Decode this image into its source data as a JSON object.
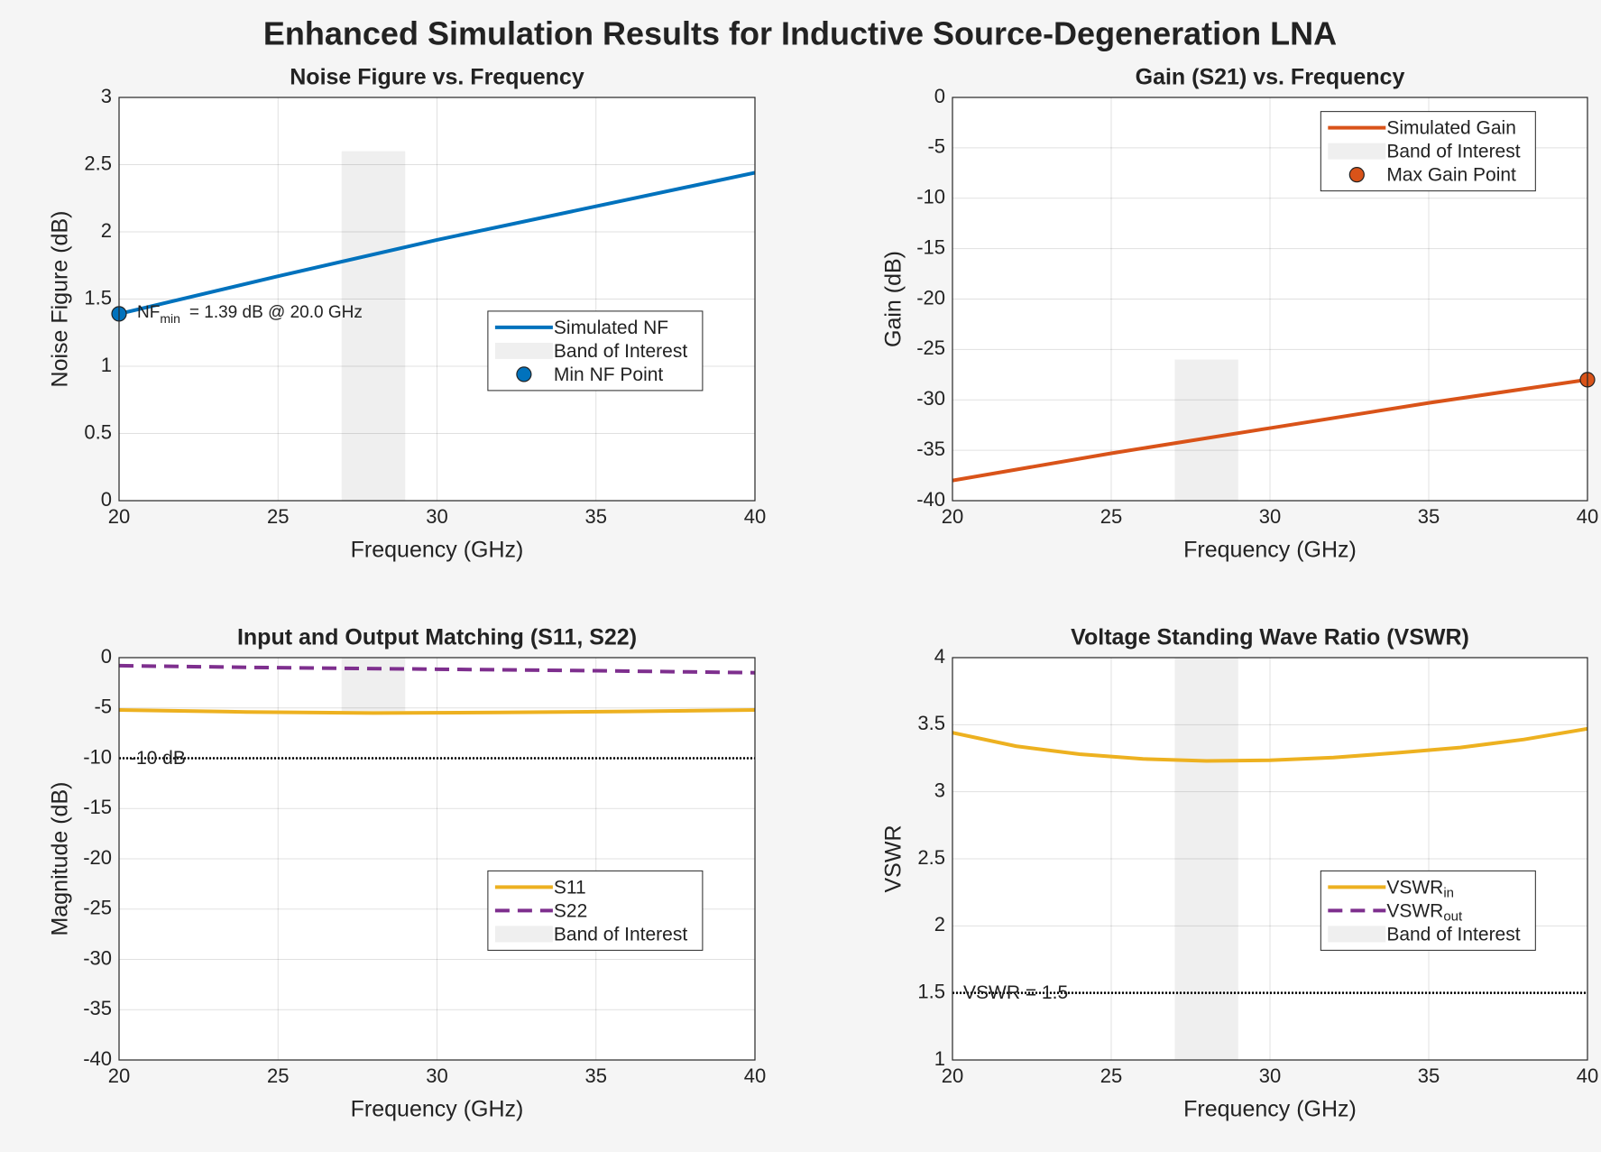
{
  "title": "Enhanced Simulation Results for Inductive Source-Degeneration LNA",
  "chart_data": [
    {
      "type": "line",
      "title": "Noise Figure vs. Frequency",
      "xlabel": "Frequency (GHz)",
      "ylabel": "Noise Figure (dB)",
      "xlim": [
        20,
        40
      ],
      "xticks": [
        20,
        25,
        30,
        35,
        40
      ],
      "ylim": [
        0,
        3
      ],
      "yticks": [
        0,
        0.5,
        1,
        1.5,
        2,
        2.5,
        3
      ],
      "grid": true,
      "legend": "east",
      "series": [
        {
          "name": "Simulated NF",
          "kind": "line",
          "color": "#0072bd",
          "x": [
            20,
            25,
            30,
            35,
            40
          ],
          "values": [
            1.39,
            1.67,
            1.94,
            2.19,
            2.44
          ]
        },
        {
          "name": "Band of Interest",
          "kind": "band",
          "color": "#efefef",
          "x": [
            27,
            29
          ],
          "values": [
            0,
            2.6
          ]
        },
        {
          "name": "Min NF Point",
          "kind": "marker",
          "color": "#0072bd",
          "x": [
            20
          ],
          "values": [
            1.39
          ]
        }
      ],
      "annotation": {
        "text": "NF",
        "sub": "min",
        "rest": "=  1.39  dB  @  20.0  GHz"
      }
    },
    {
      "type": "line",
      "title": "Gain (S21) vs. Frequency",
      "xlabel": "Frequency (GHz)",
      "ylabel": "Gain (dB)",
      "xlim": [
        20,
        40
      ],
      "xticks": [
        20,
        25,
        30,
        35,
        40
      ],
      "ylim": [
        -40,
        0
      ],
      "yticks": [
        -40,
        -35,
        -30,
        -25,
        -20,
        -15,
        -10,
        -5,
        0
      ],
      "grid": true,
      "legend": "northeast",
      "series": [
        {
          "name": "Simulated Gain",
          "kind": "line",
          "color": "#d95319",
          "x": [
            20,
            25,
            30,
            35,
            40
          ],
          "values": [
            -38,
            -35.3,
            -32.8,
            -30.3,
            -28
          ]
        },
        {
          "name": "Band of Interest",
          "kind": "band",
          "color": "#efefef",
          "x": [
            27,
            29
          ],
          "values": [
            -40,
            -26
          ]
        },
        {
          "name": "Max Gain Point",
          "kind": "marker",
          "color": "#d95319",
          "x": [
            40
          ],
          "values": [
            -28
          ]
        }
      ]
    },
    {
      "type": "line",
      "title": "Input and Output Matching (S11, S22)",
      "xlabel": "Frequency (GHz)",
      "ylabel": "Magnitude (dB)",
      "xlim": [
        20,
        40
      ],
      "xticks": [
        20,
        25,
        30,
        35,
        40
      ],
      "ylim": [
        -40,
        0
      ],
      "yticks": [
        -40,
        -35,
        -30,
        -25,
        -20,
        -15,
        -10,
        -5,
        0
      ],
      "grid": true,
      "legend": "east",
      "series": [
        {
          "name": "S11",
          "kind": "line",
          "color": "#edb120",
          "x": [
            20,
            24,
            28,
            32,
            36,
            40
          ],
          "values": [
            -5.2,
            -5.4,
            -5.5,
            -5.45,
            -5.35,
            -5.2
          ]
        },
        {
          "name": "S22",
          "kind": "dashed",
          "color": "#7e2f8e",
          "x": [
            20,
            25,
            30,
            35,
            40
          ],
          "values": [
            -0.8,
            -1.0,
            -1.15,
            -1.3,
            -1.5
          ]
        },
        {
          "name": "Band of Interest",
          "kind": "band",
          "color": "#efefef",
          "x": [
            27,
            29
          ],
          "values": [
            -5.3,
            0
          ]
        }
      ],
      "reference": {
        "value": -10,
        "label": "-10 dB"
      }
    },
    {
      "type": "line",
      "title": "Voltage Standing Wave Ratio (VSWR)",
      "xlabel": "Frequency (GHz)",
      "ylabel": "VSWR",
      "xlim": [
        20,
        40
      ],
      "xticks": [
        20,
        25,
        30,
        35,
        40
      ],
      "ylim": [
        1,
        4
      ],
      "yticks": [
        1,
        1.5,
        2,
        2.5,
        3,
        3.5,
        4
      ],
      "grid": true,
      "legend": "east",
      "series": [
        {
          "name": "VSWR",
          "name_sub": "in",
          "kind": "line",
          "color": "#edb120",
          "x": [
            20,
            22,
            24,
            26,
            28,
            30,
            32,
            34,
            36,
            38,
            40
          ],
          "values": [
            3.44,
            3.34,
            3.28,
            3.245,
            3.23,
            3.235,
            3.255,
            3.29,
            3.33,
            3.39,
            3.47
          ]
        },
        {
          "name": "VSWR",
          "name_sub": "out",
          "kind": "dashed",
          "color": "#7e2f8e",
          "x": [
            20,
            40
          ],
          "values": [
            null,
            null
          ]
        },
        {
          "name": "Band of Interest",
          "kind": "band",
          "color": "#efefef",
          "x": [
            27,
            29
          ],
          "values": [
            1,
            4
          ]
        }
      ],
      "reference": {
        "value": 1.5,
        "label": "VSWR = 1.5"
      }
    }
  ]
}
